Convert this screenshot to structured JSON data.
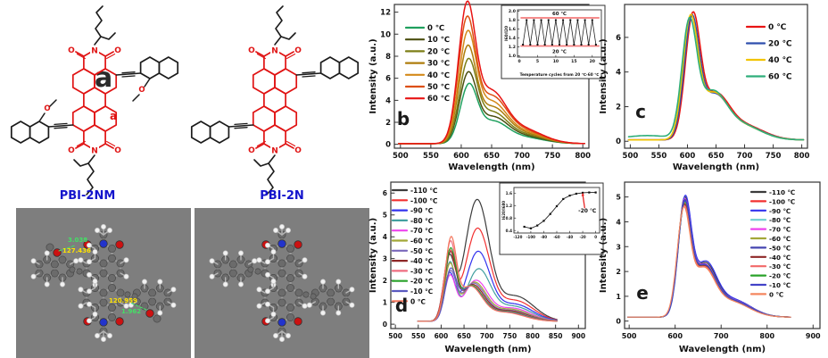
{
  "figure": {
    "panel_a": {
      "letter": "a",
      "inner_bond_label": "a",
      "structures": [
        {
          "label": "PBI-2NM"
        },
        {
          "label": "PBI-2N"
        }
      ],
      "model_annotations": {
        "distance_top": "3.038",
        "angle_top": "127.436",
        "angle_bottom": "120.959",
        "distance_bottom": "1.962"
      },
      "atom_colors": {
        "carbon": "#6b6b6b",
        "hydrogen": "#f2f2f2",
        "nitrogen": "#2233cc",
        "oxygen": "#cc1111"
      },
      "structure_colors": {
        "core": "#e01313",
        "substituent": "#1b1b1b",
        "model_background": "#7e7e7e"
      }
    },
    "panel_letters": {
      "b": "b",
      "c": "c",
      "d": "d",
      "e": "e"
    }
  },
  "chart_data": {
    "b": {
      "type": "line",
      "letter": "b",
      "xlabel": "Wavelength (nm)",
      "ylabel": "Intensity (a.u.)",
      "xlim": [
        490,
        810
      ],
      "ylim": [
        -0.35,
        12.7
      ],
      "xticks": [
        "500",
        "550",
        "600",
        "650",
        "700",
        "750",
        "800"
      ],
      "yticks": [
        "0",
        "2",
        "4",
        "6",
        "8",
        "10",
        "12"
      ],
      "curve_range": [
        497,
        803
      ],
      "baseline": 0.06,
      "series": [
        {
          "name": "0 ℃",
          "color": "#1fa05e",
          "peaks": [
            [
              612,
              4.95,
              14
            ],
            [
              651,
              1.85,
              24
            ],
            [
              702,
              0.55,
              34
            ]
          ]
        },
        {
          "name": "10 ℃",
          "color": "#4c4f10",
          "peaks": [
            [
              611,
              5.95,
              14
            ],
            [
              651,
              2.2,
              24
            ],
            [
              702,
              0.66,
              34
            ]
          ]
        },
        {
          "name": "20 ℃",
          "color": "#7d7f17",
          "peaks": [
            [
              611,
              7.0,
              14
            ],
            [
              650,
              2.6,
              24
            ],
            [
              702,
              0.78,
              34
            ]
          ]
        },
        {
          "name": "30 ℃",
          "color": "#ae7d0c",
          "peaks": [
            [
              610,
              8.15,
              14
            ],
            [
              650,
              3.0,
              24
            ],
            [
              701,
              0.9,
              34
            ]
          ]
        },
        {
          "name": "40 ℃",
          "color": "#d4891a",
          "peaks": [
            [
              610,
              9.3,
              14
            ],
            [
              649,
              3.45,
              24
            ],
            [
              701,
              1.03,
              34
            ]
          ]
        },
        {
          "name": "50 ℃",
          "color": "#dd4f12",
          "peaks": [
            [
              609,
              10.55,
              14
            ],
            [
              649,
              3.9,
              24
            ],
            [
              700,
              1.17,
              34
            ]
          ]
        },
        {
          "name": "60 ℃",
          "color": "#e81414",
          "peaks": [
            [
              609,
              11.7,
              14
            ],
            [
              648,
              4.35,
              24
            ],
            [
              700,
              1.3,
              34
            ]
          ]
        }
      ]
    },
    "b_inset": {
      "type": "line",
      "ylabel": "I60/I20",
      "xlabel": "Temperature cycles from 20 ℃-60 ℃",
      "xlim": [
        -0.5,
        22.5
      ],
      "ylim": [
        0.97,
        2.03
      ],
      "yticks": [
        "1.0",
        "1.2",
        "1.4",
        "1.6",
        "1.8",
        "2.0"
      ],
      "xticks": [
        "0",
        "5",
        "10",
        "15",
        "20"
      ],
      "high_line": {
        "y": 1.85,
        "label": "60 ℃"
      },
      "low_line": {
        "y": 1.22,
        "label": "20 ℃"
      },
      "line_color": "#f47c7c",
      "cycle_low": 1.25,
      "cycle_high": 1.8,
      "cycle_count": 21
    },
    "c": {
      "type": "line",
      "letter": "c",
      "xlabel": "Wavelength (nm)",
      "ylabel": "Intensity (a.u.)",
      "xlim": [
        490,
        810
      ],
      "ylim": [
        -0.4,
        7.9
      ],
      "xticks": [
        "500",
        "550",
        "600",
        "650",
        "700",
        "750",
        "800"
      ],
      "yticks": [
        "0",
        "2",
        "4",
        "6"
      ],
      "curve_range": [
        497,
        803
      ],
      "baseline": 0.08,
      "series": [
        {
          "name": "0 ℃",
          "color": "#e81414",
          "peaks": [
            [
              609,
              6.7,
              13
            ],
            [
              648,
              2.45,
              24
            ],
            [
              700,
              0.8,
              34
            ]
          ]
        },
        {
          "name": "20 ℃",
          "color": "#2f4fae",
          "peaks": [
            [
              607,
              6.55,
              13
            ],
            [
              646,
              2.4,
              24
            ],
            [
              698,
              0.78,
              34
            ]
          ]
        },
        {
          "name": "40 ℃",
          "color": "#f2c400",
          "peaks": [
            [
              605,
              6.6,
              13
            ],
            [
              645,
              2.45,
              24
            ],
            [
              696,
              0.8,
              34
            ]
          ]
        },
        {
          "name": "60 ℃",
          "color": "#2fae7a",
          "peaks": [
            [
              603,
              6.35,
              13
            ],
            [
              643,
              2.55,
              24
            ],
            [
              694,
              0.85,
              34
            ],
            [
              530,
              0.25,
              40
            ]
          ]
        }
      ]
    },
    "d": {
      "type": "line",
      "letter": "d",
      "xlabel": "Wavelength (nm)",
      "ylabel": "Intensity (a.u.)",
      "xlim": [
        490,
        915
      ],
      "ylim": [
        -0.2,
        6.5
      ],
      "xticks": [
        "500",
        "550",
        "600",
        "650",
        "700",
        "750",
        "800",
        "850",
        "900"
      ],
      "yticks": [
        "0",
        "1",
        "2",
        "3",
        "4",
        "5",
        "6"
      ],
      "curve_range": [
        549,
        853
      ],
      "baseline": 0.13,
      "series": [
        {
          "name": "-110 ℃",
          "color": "#3c3c3c",
          "peaks": [
            [
              617,
              2.7,
              12
            ],
            [
              678,
              5.45,
              26
            ],
            [
              762,
              1.15,
              40
            ]
          ]
        },
        {
          "name": "-100 ℃",
          "color": "#f23030",
          "peaks": [
            [
              618,
              3.0,
              12
            ],
            [
              679,
              4.15,
              26
            ],
            [
              761,
              0.95,
              40
            ]
          ]
        },
        {
          "name": "-90 ℃",
          "color": "#3333ee",
          "peaks": [
            [
              618,
              2.05,
              12
            ],
            [
              680,
              3.1,
              26
            ],
            [
              760,
              0.78,
              40
            ]
          ]
        },
        {
          "name": "-80 ℃",
          "color": "#43a0a0",
          "peaks": [
            [
              619,
              2.6,
              12
            ],
            [
              681,
              2.3,
              26
            ],
            [
              758,
              0.68,
              40
            ]
          ]
        },
        {
          "name": "-70 ℃",
          "color": "#ee44ee",
          "peaks": [
            [
              619,
              1.95,
              12
            ],
            [
              675,
              1.8,
              26
            ],
            [
              755,
              0.6,
              40
            ]
          ]
        },
        {
          "name": "-60 ℃",
          "color": "#a3a838",
          "peaks": [
            [
              619,
              2.45,
              12
            ],
            [
              672,
              1.72,
              26
            ],
            [
              752,
              0.55,
              40
            ]
          ]
        },
        {
          "name": "-50 ℃",
          "color": "#7a68bb",
          "peaks": [
            [
              620,
              2.05,
              12
            ],
            [
              670,
              1.68,
              26
            ],
            [
              750,
              0.5,
              40
            ]
          ]
        },
        {
          "name": "-40 ℃",
          "color": "#8e2727",
          "peaks": [
            [
              620,
              2.9,
              12
            ],
            [
              668,
              1.62,
              26
            ],
            [
              748,
              0.48,
              40
            ]
          ]
        },
        {
          "name": "-30 ℃",
          "color": "#ee6e80",
          "peaks": [
            [
              620,
              3.35,
              12
            ],
            [
              666,
              1.58,
              26
            ],
            [
              746,
              0.45,
              40
            ]
          ]
        },
        {
          "name": "-20 ℃",
          "color": "#2aa22a",
          "peaks": [
            [
              620,
              3.0,
              12
            ],
            [
              665,
              1.58,
              26
            ],
            [
              744,
              0.44,
              40
            ]
          ]
        },
        {
          "name": "-10 ℃",
          "color": "#5a5ac0",
          "peaks": [
            [
              620,
              2.05,
              12
            ],
            [
              664,
              1.55,
              26
            ],
            [
              742,
              0.42,
              40
            ]
          ]
        },
        {
          "name": "0 ℃",
          "color": "#f4785f",
          "peaks": [
            [
              621,
              3.45,
              12
            ],
            [
              663,
              1.55,
              26
            ],
            [
              740,
              0.4,
              40
            ]
          ]
        }
      ]
    },
    "d_inset": {
      "type": "scatter-line",
      "ylabel": "I620/I680",
      "annotation": "-20 ℃",
      "arrow_color": "#e82222",
      "xlim": [
        -126,
        6
      ],
      "ylim": [
        0.32,
        1.78
      ],
      "xticks": [
        "-120",
        "-100",
        "-80",
        "-60",
        "-40",
        "-20",
        "0"
      ],
      "yticks": [
        "0.4",
        "0.8",
        "1.2",
        "1.6"
      ],
      "points": [
        [
          -110,
          0.52
        ],
        [
          -100,
          0.47
        ],
        [
          -90,
          0.56
        ],
        [
          -80,
          0.71
        ],
        [
          -70,
          0.93
        ],
        [
          -60,
          1.18
        ],
        [
          -50,
          1.41
        ],
        [
          -40,
          1.52
        ],
        [
          -30,
          1.58
        ],
        [
          -20,
          1.61
        ],
        [
          -10,
          1.62
        ],
        [
          0,
          1.62
        ]
      ]
    },
    "e": {
      "type": "line",
      "letter": "e",
      "xlabel": "Wavelength (nm)",
      "ylabel": "Intensity (a.u.)",
      "xlim": [
        490,
        915
      ],
      "ylim": [
        -0.3,
        5.6
      ],
      "xticks": [
        "500",
        "600",
        "700",
        "800",
        "900"
      ],
      "yticks": [
        "0",
        "1",
        "2",
        "3",
        "4",
        "5"
      ],
      "curve_range": [
        497,
        852
      ],
      "baseline": 0.16,
      "series": [
        {
          "name": "-110 ℃",
          "color": "#3c3c3c",
          "peaks": [
            [
              620,
              4.45,
              14
            ],
            [
              664,
              1.95,
              24
            ],
            [
              724,
              0.7,
              40
            ]
          ]
        },
        {
          "name": "-100 ℃",
          "color": "#f23030",
          "peaks": [
            [
              619,
              4.2,
              14
            ],
            [
              662,
              1.85,
              24
            ],
            [
              722,
              0.66,
              40
            ]
          ]
        },
        {
          "name": "-90 ℃",
          "color": "#3333ee",
          "peaks": [
            [
              621,
              4.5,
              14
            ],
            [
              665,
              2.0,
              24
            ],
            [
              724,
              0.7,
              40
            ]
          ]
        },
        {
          "name": "-80 ℃",
          "color": "#6fd0d0",
          "peaks": [
            [
              620,
              4.3,
              14
            ],
            [
              663,
              1.9,
              24
            ],
            [
              723,
              0.67,
              40
            ]
          ]
        },
        {
          "name": "-70 ℃",
          "color": "#ee44ee",
          "peaks": [
            [
              620,
              4.35,
              14
            ],
            [
              663,
              1.9,
              24
            ],
            [
              723,
              0.67,
              40
            ]
          ]
        },
        {
          "name": "-60 ℃",
          "color": "#a3a838",
          "peaks": [
            [
              619,
              4.2,
              14
            ],
            [
              662,
              1.85,
              24
            ],
            [
              722,
              0.65,
              40
            ]
          ]
        },
        {
          "name": "-50 ℃",
          "color": "#4646b0",
          "peaks": [
            [
              620,
              4.32,
              14
            ],
            [
              663,
              1.88,
              24
            ],
            [
              723,
              0.66,
              40
            ]
          ]
        },
        {
          "name": "-40 ℃",
          "color": "#8e2727",
          "peaks": [
            [
              619,
              4.15,
              14
            ],
            [
              662,
              1.83,
              24
            ],
            [
              722,
              0.65,
              40
            ]
          ]
        },
        {
          "name": "-30 ℃",
          "color": "#f26868",
          "peaks": [
            [
              619,
              4.1,
              14
            ],
            [
              662,
              1.8,
              24
            ],
            [
              721,
              0.63,
              40
            ]
          ]
        },
        {
          "name": "-20 ℃",
          "color": "#2aa22a",
          "peaks": [
            [
              620,
              4.25,
              14
            ],
            [
              663,
              1.86,
              24
            ],
            [
              722,
              0.65,
              40
            ]
          ]
        },
        {
          "name": "-10 ℃",
          "color": "#4343c8",
          "peaks": [
            [
              620,
              4.28,
              14
            ],
            [
              663,
              1.86,
              24
            ],
            [
              722,
              0.65,
              40
            ]
          ]
        },
        {
          "name": "0 ℃",
          "color": "#f4865f",
          "peaks": [
            [
              618,
              4.05,
              14
            ],
            [
              661,
              1.78,
              24
            ],
            [
              720,
              0.62,
              40
            ]
          ]
        }
      ]
    }
  }
}
